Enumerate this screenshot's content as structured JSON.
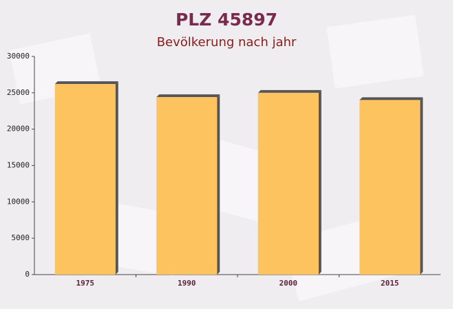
{
  "chart_data": {
    "type": "bar",
    "title": "PLZ 45897",
    "subtitle": "Bevölkerung nach jahr",
    "categories": [
      "1975",
      "1990",
      "2000",
      "2015"
    ],
    "values": [
      26200,
      24400,
      25000,
      24000
    ],
    "color": "#fdc35f",
    "ylim": [
      0,
      30000
    ],
    "yticks": [
      0,
      5000,
      10000,
      15000,
      20000,
      25000,
      30000
    ],
    "grid": false
  }
}
